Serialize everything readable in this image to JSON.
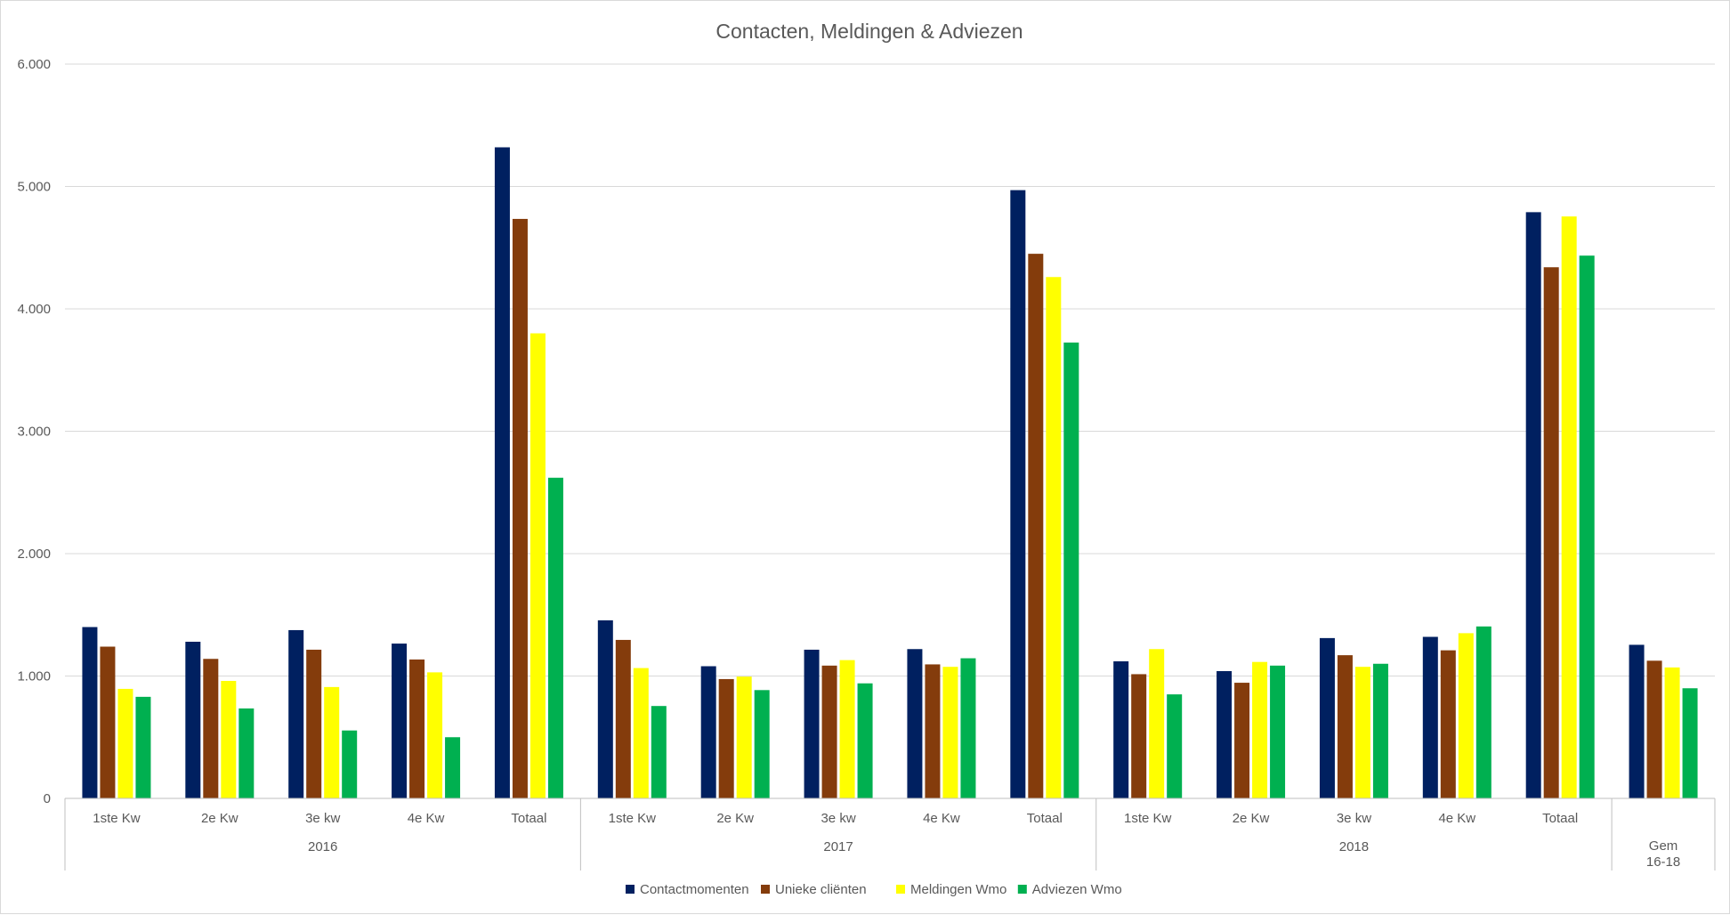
{
  "chart_data": {
    "type": "bar",
    "title": "Contacten, Meldingen & Adviezen",
    "xlabel": "",
    "ylabel": "",
    "ylim": [
      0,
      6000
    ],
    "yticks": [
      0,
      1000,
      2000,
      3000,
      4000,
      5000,
      6000
    ],
    "ytick_labels": [
      "0",
      "1.000",
      "2.000",
      "3.000",
      "4.000",
      "5.000",
      "6.000"
    ],
    "grid": true,
    "legend_position": "bottom",
    "categories": [
      "1ste Kw",
      "2e Kw",
      "3e kw",
      "4e Kw",
      "Totaal",
      "1ste Kw",
      "2e Kw",
      "3e kw",
      "4e Kw",
      "Totaal",
      "1ste Kw",
      "2e Kw",
      "3e kw",
      "4e Kw",
      "Totaal",
      ""
    ],
    "groups": [
      {
        "label": "2016",
        "count": 5
      },
      {
        "label": "2017",
        "count": 5
      },
      {
        "label": "2018",
        "count": 5
      },
      {
        "label": "Gem 16-18",
        "label_lines": [
          "Gem",
          "16-18"
        ],
        "count": 1
      }
    ],
    "series": [
      {
        "name": "Contactmomenten",
        "color": "#002060",
        "values": [
          1400,
          1280,
          1375,
          1265,
          5320,
          1455,
          1080,
          1215,
          1220,
          4970,
          1120,
          1040,
          1310,
          1320,
          4790,
          1255
        ]
      },
      {
        "name": "Unieke cliënten",
        "color": "#843C0C",
        "values": [
          1240,
          1140,
          1215,
          1135,
          4735,
          1295,
          975,
          1085,
          1095,
          4450,
          1015,
          945,
          1170,
          1210,
          4340,
          1125
        ]
      },
      {
        "name": "Meldingen Wmo",
        "color": "#FFFF00",
        "values": [
          895,
          960,
          910,
          1030,
          3800,
          1065,
          995,
          1130,
          1075,
          4260,
          1220,
          1115,
          1075,
          1350,
          4755,
          1070
        ]
      },
      {
        "name": "Adviezen Wmo",
        "color": "#00B050",
        "values": [
          830,
          735,
          555,
          500,
          2620,
          755,
          885,
          940,
          1145,
          3725,
          850,
          1085,
          1100,
          1405,
          4435,
          900
        ]
      }
    ]
  }
}
